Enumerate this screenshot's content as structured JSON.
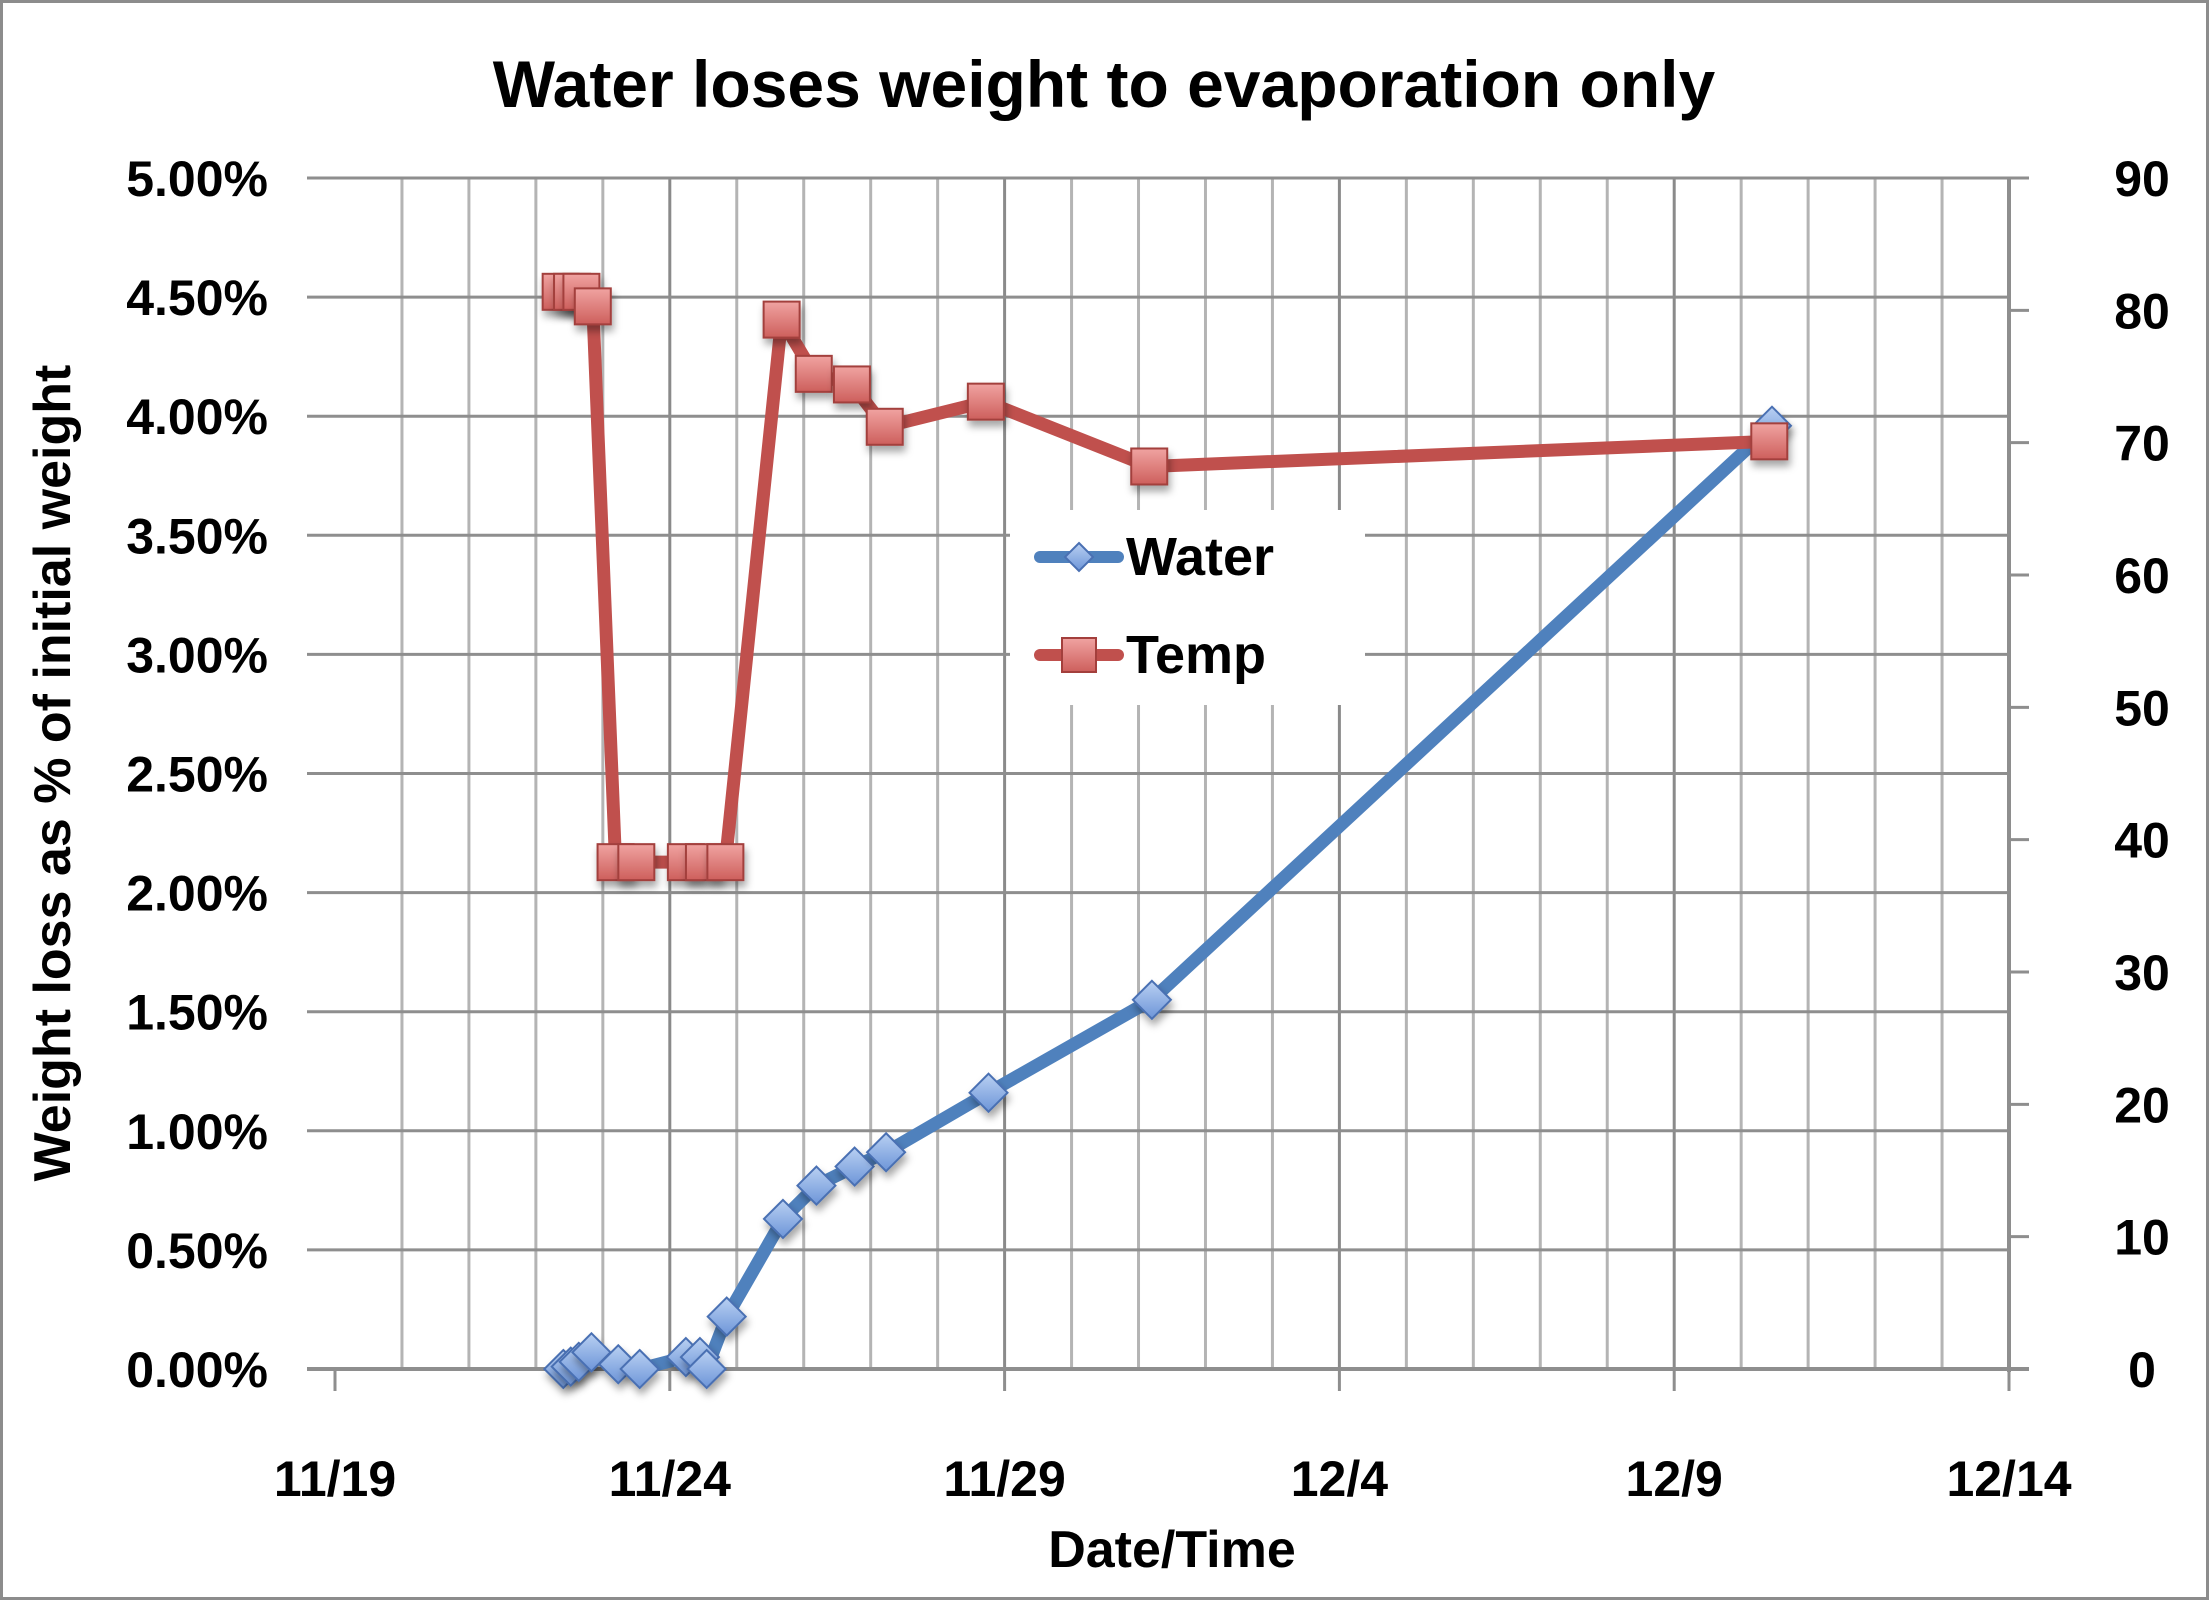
{
  "chart_data": {
    "type": "line",
    "title": "Water loses weight to evaporation only",
    "xlabel": "Date/Time",
    "ylabel": "Weight loss as % of initial weight",
    "y2label": "",
    "x_tick_labels": [
      "11/19",
      "11/24",
      "11/29",
      "12/4",
      "12/9",
      "12/14"
    ],
    "x_range_days_from_11_19": [
      0,
      25
    ],
    "x_minor_grid_step_days": 1,
    "y_tick_labels": [
      "0.00%",
      "0.50%",
      "1.00%",
      "1.50%",
      "2.00%",
      "2.50%",
      "3.00%",
      "3.50%",
      "4.00%",
      "4.50%",
      "5.00%"
    ],
    "ylim": [
      0,
      5.0
    ],
    "y2_tick_labels": [
      "0",
      "10",
      "20",
      "30",
      "40",
      "50",
      "60",
      "70",
      "80",
      "90"
    ],
    "y2lim": [
      0,
      90
    ],
    "grid": true,
    "legend_position": "center",
    "series": [
      {
        "name": "Water",
        "axis": "left",
        "color": "#4f81bd",
        "marker": "diamond",
        "x_days": [
          3.41,
          3.52,
          3.64,
          3.83,
          4.23,
          4.55,
          5.24,
          5.45,
          5.55,
          5.85,
          6.69,
          7.19,
          7.76,
          8.23,
          9.76,
          12.2,
          21.46
        ],
        "y_pct": [
          0.0,
          0.01,
          0.03,
          0.07,
          0.02,
          0.0,
          0.05,
          0.05,
          0.0,
          0.22,
          0.63,
          0.77,
          0.85,
          0.91,
          1.16,
          1.55,
          3.96
        ]
      },
      {
        "name": "Temp",
        "axis": "right",
        "color": "#c0504d",
        "marker": "square",
        "x_days": [
          3.37,
          3.54,
          3.68,
          3.85,
          4.19,
          4.5,
          5.24,
          5.51,
          5.83,
          6.67,
          7.15,
          7.72,
          8.21,
          9.72,
          12.16,
          21.42
        ],
        "y": [
          81.4,
          81.4,
          81.4,
          80.3,
          38.3,
          38.3,
          38.3,
          38.3,
          38.3,
          79.3,
          75.2,
          74.4,
          71.2,
          73.1,
          68.2,
          70.1
        ]
      }
    ]
  }
}
